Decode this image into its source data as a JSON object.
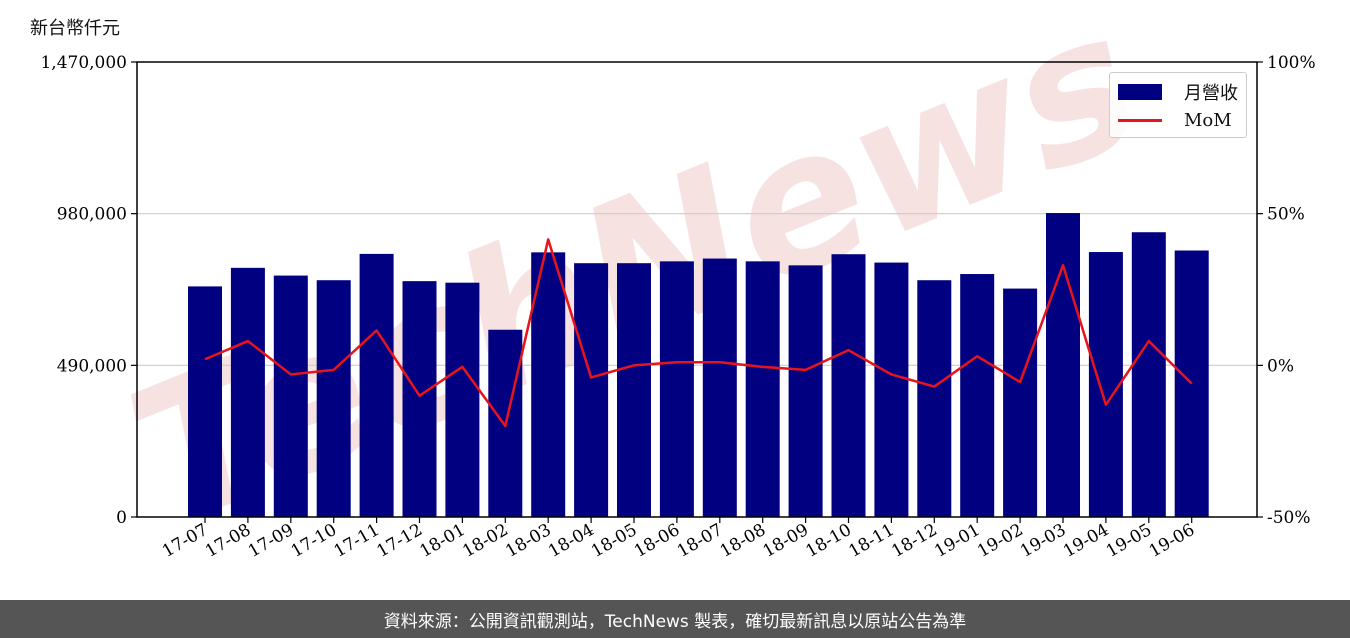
{
  "unit_label": "新台幣仟元",
  "footer_text": "資料來源：公開資訊觀測站，TechNews 製表，確切最新訊息以原站公告為準",
  "watermark_text": "TechNews",
  "colors": {
    "bar": "#000080",
    "line": "#e8141b",
    "grid": "#cccccc",
    "watermark": "#f2cccc"
  },
  "chart_data": {
    "type": "bar",
    "categories": [
      "17-07",
      "17-08",
      "17-09",
      "17-10",
      "17-11",
      "17-12",
      "18-01",
      "18-02",
      "18-03",
      "18-04",
      "18-05",
      "18-06",
      "18-07",
      "18-08",
      "18-09",
      "18-10",
      "18-11",
      "18-12",
      "19-01",
      "19-02",
      "19-03",
      "19-04",
      "19-05",
      "19-06"
    ],
    "series": [
      {
        "name": "月營收",
        "axis": "left",
        "type": "bar",
        "values": [
          745000,
          805000,
          780000,
          765000,
          850000,
          762000,
          757000,
          605000,
          855000,
          820000,
          820000,
          826000,
          835000,
          826000,
          813000,
          849000,
          822000,
          765000,
          785000,
          738000,
          982000,
          856000,
          920000,
          861000
        ]
      },
      {
        "name": "MoM",
        "axis": "right",
        "type": "line",
        "values": [
          2,
          8,
          -3,
          -1.5,
          11.5,
          -10,
          -0.5,
          -20,
          41.5,
          -4,
          0,
          1,
          1,
          -0.5,
          -1.5,
          5,
          -3,
          -7,
          3,
          -5.5,
          33,
          -13,
          8,
          -6
        ]
      }
    ],
    "ylim_left": [
      0,
      1470000
    ],
    "yticks_left": [
      "0",
      "490,000",
      "980,000",
      "1,470,000"
    ],
    "ylim_right": [
      -50,
      100
    ],
    "yticks_right": [
      "-50%",
      "0%",
      "50%",
      "100%"
    ],
    "grid": "horizontal",
    "legend_position": "top-right"
  }
}
